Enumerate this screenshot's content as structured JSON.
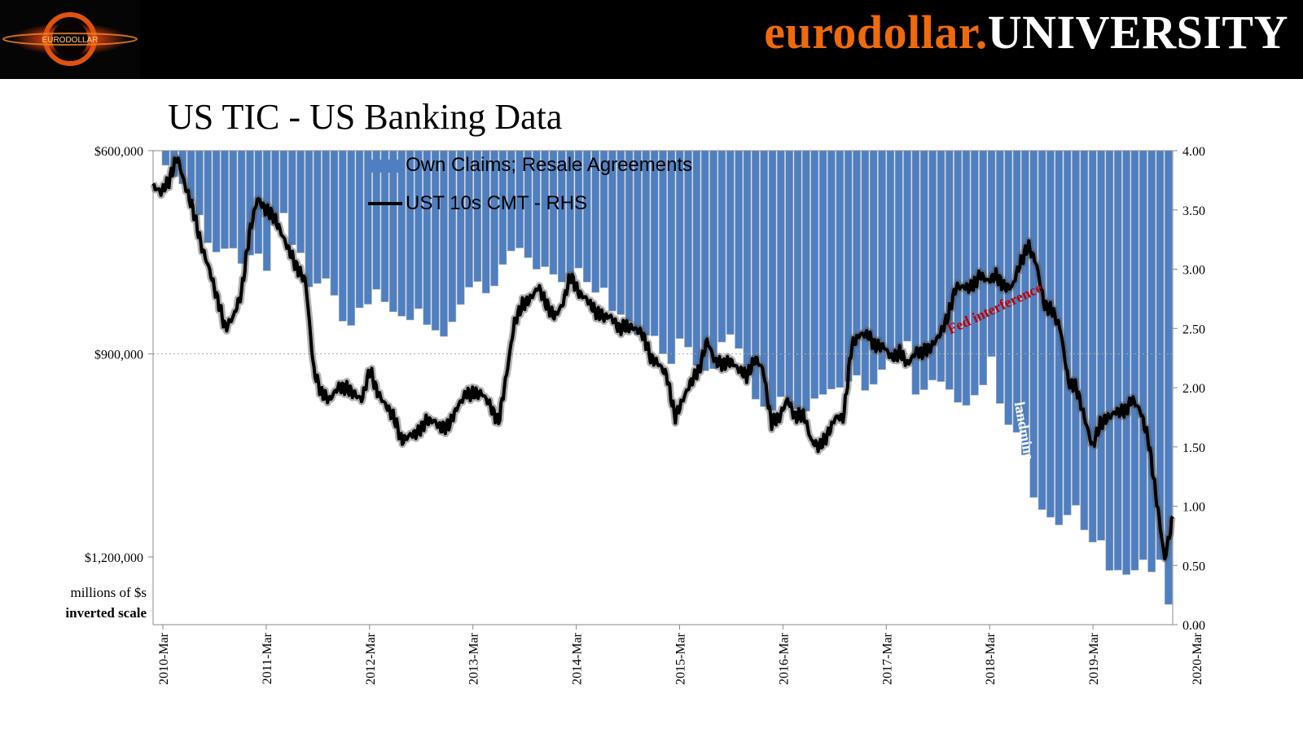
{
  "header": {
    "brand_part1": "eurodollar.",
    "brand_part2": "UNIVERSITY",
    "logo_text": "EURODOLLAR"
  },
  "colors": {
    "bar": "#4f7fc0",
    "bar_edge": "#a8b2bf",
    "line": "#000000",
    "annotation_fed": "#c00000",
    "annotation_landmine": "#ffffff",
    "brand_orange": "#f06a0c"
  },
  "chart_data": {
    "type": "bar",
    "title": "US TIC - US Banking Data",
    "left_axis": {
      "unit_label": "millions of $s",
      "scale_note": "inverted scale",
      "inverted": true,
      "range": [
        600000,
        1300000
      ],
      "ticks": [
        "$600,000",
        "$900,000",
        "$1,200,000"
      ],
      "tick_values": [
        600000,
        900000,
        1200000
      ]
    },
    "right_axis": {
      "range": [
        0,
        4
      ],
      "ticks": [
        "4.00",
        "3.50",
        "3.00",
        "2.50",
        "2.00",
        "1.50",
        "1.00",
        "0.50",
        "0.00"
      ]
    },
    "x_labels": [
      "2010-Mar",
      "2011-Mar",
      "2012-Mar",
      "2013-Mar",
      "2014-Mar",
      "2015-Mar",
      "2016-Mar",
      "2017-Mar",
      "2018-Mar",
      "2019-Mar",
      "2020-Mar"
    ],
    "series": [
      {
        "name": "Own Claims; Resale Agreements",
        "type": "bar",
        "axis": "left",
        "anchors": [
          [
            0,
            600000
          ],
          [
            3,
            640000
          ],
          [
            6,
            700000
          ],
          [
            8,
            750000
          ],
          [
            10,
            740000
          ],
          [
            12,
            780000
          ],
          [
            14,
            770000
          ],
          [
            16,
            700000
          ],
          [
            18,
            740000
          ],
          [
            20,
            800000
          ],
          [
            22,
            790000
          ],
          [
            24,
            820000
          ],
          [
            26,
            860000
          ],
          [
            28,
            840000
          ],
          [
            30,
            810000
          ],
          [
            32,
            840000
          ],
          [
            34,
            850000
          ],
          [
            36,
            855000
          ],
          [
            38,
            870000
          ],
          [
            40,
            840000
          ],
          [
            42,
            800000
          ],
          [
            44,
            810000
          ],
          [
            46,
            775000
          ],
          [
            48,
            740000
          ],
          [
            50,
            760000
          ],
          [
            52,
            770000
          ],
          [
            54,
            790000
          ],
          [
            56,
            780000
          ],
          [
            58,
            800000
          ],
          [
            60,
            800000
          ],
          [
            62,
            840000
          ],
          [
            64,
            860000
          ],
          [
            66,
            870000
          ],
          [
            68,
            900000
          ],
          [
            70,
            880000
          ],
          [
            72,
            920000
          ],
          [
            74,
            930000
          ],
          [
            76,
            880000
          ],
          [
            78,
            890000
          ],
          [
            80,
            960000
          ],
          [
            82,
            980000
          ],
          [
            84,
            960000
          ],
          [
            86,
            980000
          ],
          [
            88,
            970000
          ],
          [
            90,
            960000
          ],
          [
            92,
            950000
          ],
          [
            94,
            930000
          ],
          [
            96,
            950000
          ],
          [
            98,
            910000
          ],
          [
            100,
            890000
          ],
          [
            102,
            960000
          ],
          [
            104,
            940000
          ],
          [
            106,
            950000
          ],
          [
            108,
            980000
          ],
          [
            110,
            960000
          ],
          [
            112,
            890000
          ],
          [
            114,
            1000000
          ],
          [
            116,
            1020000
          ],
          [
            118,
            1120000
          ],
          [
            120,
            1140000
          ],
          [
            122,
            1160000
          ],
          [
            124,
            1140000
          ],
          [
            126,
            1180000
          ],
          [
            128,
            1220000
          ],
          [
            130,
            1225000
          ],
          [
            132,
            1210000
          ],
          [
            134,
            1230000
          ],
          [
            136,
            1270000
          ]
        ],
        "extra_points": [
          [
            2,
            638000
          ],
          [
            5,
            685000
          ],
          [
            7,
            745000
          ],
          [
            13,
            725000
          ],
          [
            15,
            780000
          ],
          [
            17,
            692000
          ],
          [
            19,
            733000
          ],
          [
            21,
            803000
          ],
          [
            23,
            788000
          ],
          [
            25,
            854000
          ],
          [
            27,
            830000
          ],
          [
            29,
            800000
          ],
          [
            31,
            832000
          ],
          [
            33,
            845000
          ],
          [
            35,
            830000
          ],
          [
            37,
            862000
          ],
          [
            39,
            878000
          ],
          [
            41,
            824000
          ],
          [
            43,
            792000
          ],
          [
            45,
            812000
          ],
          [
            47,
            760000
          ],
          [
            49,
            745000
          ],
          [
            51,
            775000
          ],
          [
            53,
            780000
          ],
          [
            55,
            800000
          ],
          [
            57,
            770000
          ],
          [
            59,
            810000
          ],
          [
            61,
            836000
          ],
          [
            63,
            846000
          ],
          [
            65,
            880000
          ],
          [
            67,
            874000
          ],
          [
            69,
            920000
          ],
          [
            71,
            870000
          ],
          [
            73,
            915000
          ],
          [
            75,
            920000
          ],
          [
            77,
            870000
          ],
          [
            79,
            900000
          ],
          [
            81,
            975000
          ],
          [
            83,
            985000
          ],
          [
            85,
            975000
          ],
          [
            87,
            990000
          ],
          [
            89,
            960000
          ],
          [
            91,
            948000
          ],
          [
            93,
            940000
          ],
          [
            95,
            955000
          ],
          [
            97,
            935000
          ],
          [
            99,
            905000
          ],
          [
            101,
            880000
          ],
          [
            103,
            955000
          ],
          [
            105,
            935000
          ],
          [
            107,
            955000
          ],
          [
            109,
            975000
          ],
          [
            111,
            950000
          ],
          [
            113,
            960000
          ],
          [
            115,
            1010000
          ],
          [
            117,
            1060000
          ],
          [
            119,
            1130000
          ],
          [
            121,
            1150000
          ],
          [
            123,
            1105000
          ],
          [
            125,
            1170000
          ],
          [
            127,
            1175000
          ],
          [
            129,
            1218000
          ],
          [
            131,
            1228000
          ],
          [
            133,
            1200000
          ],
          [
            135,
            1200000
          ]
        ]
      },
      {
        "name": "UST 10s CMT - RHS",
        "type": "line",
        "axis": "right",
        "anchors": [
          [
            0,
            3.7
          ],
          [
            2,
            3.75
          ],
          [
            3,
            3.95
          ],
          [
            5,
            3.5
          ],
          [
            6,
            3.2
          ],
          [
            8,
            2.75
          ],
          [
            9,
            2.5
          ],
          [
            10,
            2.6
          ],
          [
            11,
            2.8
          ],
          [
            12,
            3.3
          ],
          [
            14,
            3.5
          ],
          [
            15,
            3.45
          ],
          [
            16,
            3.3
          ],
          [
            17,
            3.15
          ],
          [
            18,
            3.0
          ],
          [
            19,
            2.9
          ],
          [
            20,
            2.15
          ],
          [
            22,
            1.9
          ],
          [
            24,
            2.0
          ],
          [
            26,
            1.9
          ],
          [
            27,
            2.15
          ],
          [
            28,
            1.95
          ],
          [
            30,
            1.75
          ],
          [
            31,
            1.55
          ],
          [
            32,
            1.6
          ],
          [
            34,
            1.72
          ],
          [
            36,
            1.65
          ],
          [
            38,
            1.85
          ],
          [
            40,
            1.95
          ],
          [
            41,
            1.95
          ],
          [
            42,
            1.85
          ],
          [
            43,
            1.7
          ],
          [
            44,
            2.1
          ],
          [
            45,
            2.55
          ],
          [
            47,
            2.75
          ],
          [
            48,
            2.85
          ],
          [
            50,
            2.6
          ],
          [
            51,
            2.7
          ],
          [
            52,
            2.95
          ],
          [
            53,
            2.8
          ],
          [
            55,
            2.65
          ],
          [
            57,
            2.6
          ],
          [
            59,
            2.52
          ],
          [
            61,
            2.45
          ],
          [
            62,
            2.25
          ],
          [
            63,
            2.2
          ],
          [
            64,
            2.1
          ],
          [
            65,
            1.75
          ],
          [
            66,
            1.9
          ],
          [
            67,
            2.05
          ],
          [
            68,
            2.15
          ],
          [
            69,
            2.4
          ],
          [
            70,
            2.22
          ],
          [
            72,
            2.22
          ],
          [
            74,
            2.1
          ],
          [
            75,
            2.25
          ],
          [
            76,
            2.15
          ],
          [
            77,
            1.7
          ],
          [
            78,
            1.75
          ],
          [
            79,
            1.9
          ],
          [
            80,
            1.75
          ],
          [
            81,
            1.78
          ],
          [
            82,
            1.55
          ],
          [
            83,
            1.5
          ],
          [
            84,
            1.6
          ],
          [
            85,
            1.75
          ],
          [
            86,
            1.75
          ],
          [
            87,
            2.35
          ],
          [
            88,
            2.45
          ],
          [
            89,
            2.45
          ],
          [
            90,
            2.35
          ],
          [
            91,
            2.35
          ],
          [
            92,
            2.25
          ],
          [
            93,
            2.3
          ],
          [
            94,
            2.2
          ],
          [
            95,
            2.3
          ],
          [
            96,
            2.3
          ],
          [
            97,
            2.35
          ],
          [
            98,
            2.45
          ],
          [
            99,
            2.6
          ],
          [
            100,
            2.85
          ],
          [
            101,
            2.85
          ],
          [
            102,
            2.85
          ],
          [
            103,
            2.95
          ],
          [
            104,
            2.9
          ],
          [
            105,
            2.95
          ],
          [
            106,
            2.85
          ],
          [
            107,
            2.85
          ],
          [
            108,
            3.05
          ],
          [
            109,
            3.2
          ],
          [
            110,
            3.05
          ],
          [
            111,
            2.7
          ],
          [
            112,
            2.65
          ],
          [
            113,
            2.5
          ],
          [
            114,
            2.05
          ],
          [
            115,
            2.0
          ],
          [
            116,
            1.75
          ],
          [
            117,
            1.5
          ],
          [
            118,
            1.7
          ],
          [
            119,
            1.75
          ],
          [
            120,
            1.8
          ],
          [
            121,
            1.8
          ],
          [
            122,
            1.9
          ],
          [
            123,
            1.8
          ],
          [
            124,
            1.55
          ],
          [
            125,
            1.05
          ],
          [
            126,
            0.55
          ],
          [
            127,
            0.9
          ]
        ],
        "extra_points": [
          [
            1,
            3.65
          ],
          [
            4,
            3.7
          ],
          [
            7,
            3.0
          ],
          [
            13,
            3.6
          ],
          [
            21,
            1.95
          ],
          [
            23,
            2.0
          ],
          [
            25,
            1.95
          ],
          [
            29,
            1.85
          ],
          [
            33,
            1.62
          ],
          [
            35,
            1.72
          ],
          [
            37,
            1.7
          ],
          [
            39,
            1.95
          ],
          [
            46,
            2.7
          ],
          [
            49,
            2.7
          ],
          [
            54,
            2.75
          ],
          [
            56,
            2.6
          ],
          [
            58,
            2.5
          ],
          [
            60,
            2.5
          ],
          [
            71,
            2.2
          ],
          [
            73,
            2.15
          ]
        ]
      }
    ],
    "annotations": [
      "Fed interference",
      "landmine"
    ]
  },
  "labels": {
    "units_line1": "millions of $s",
    "units_line2": "inverted scale"
  }
}
